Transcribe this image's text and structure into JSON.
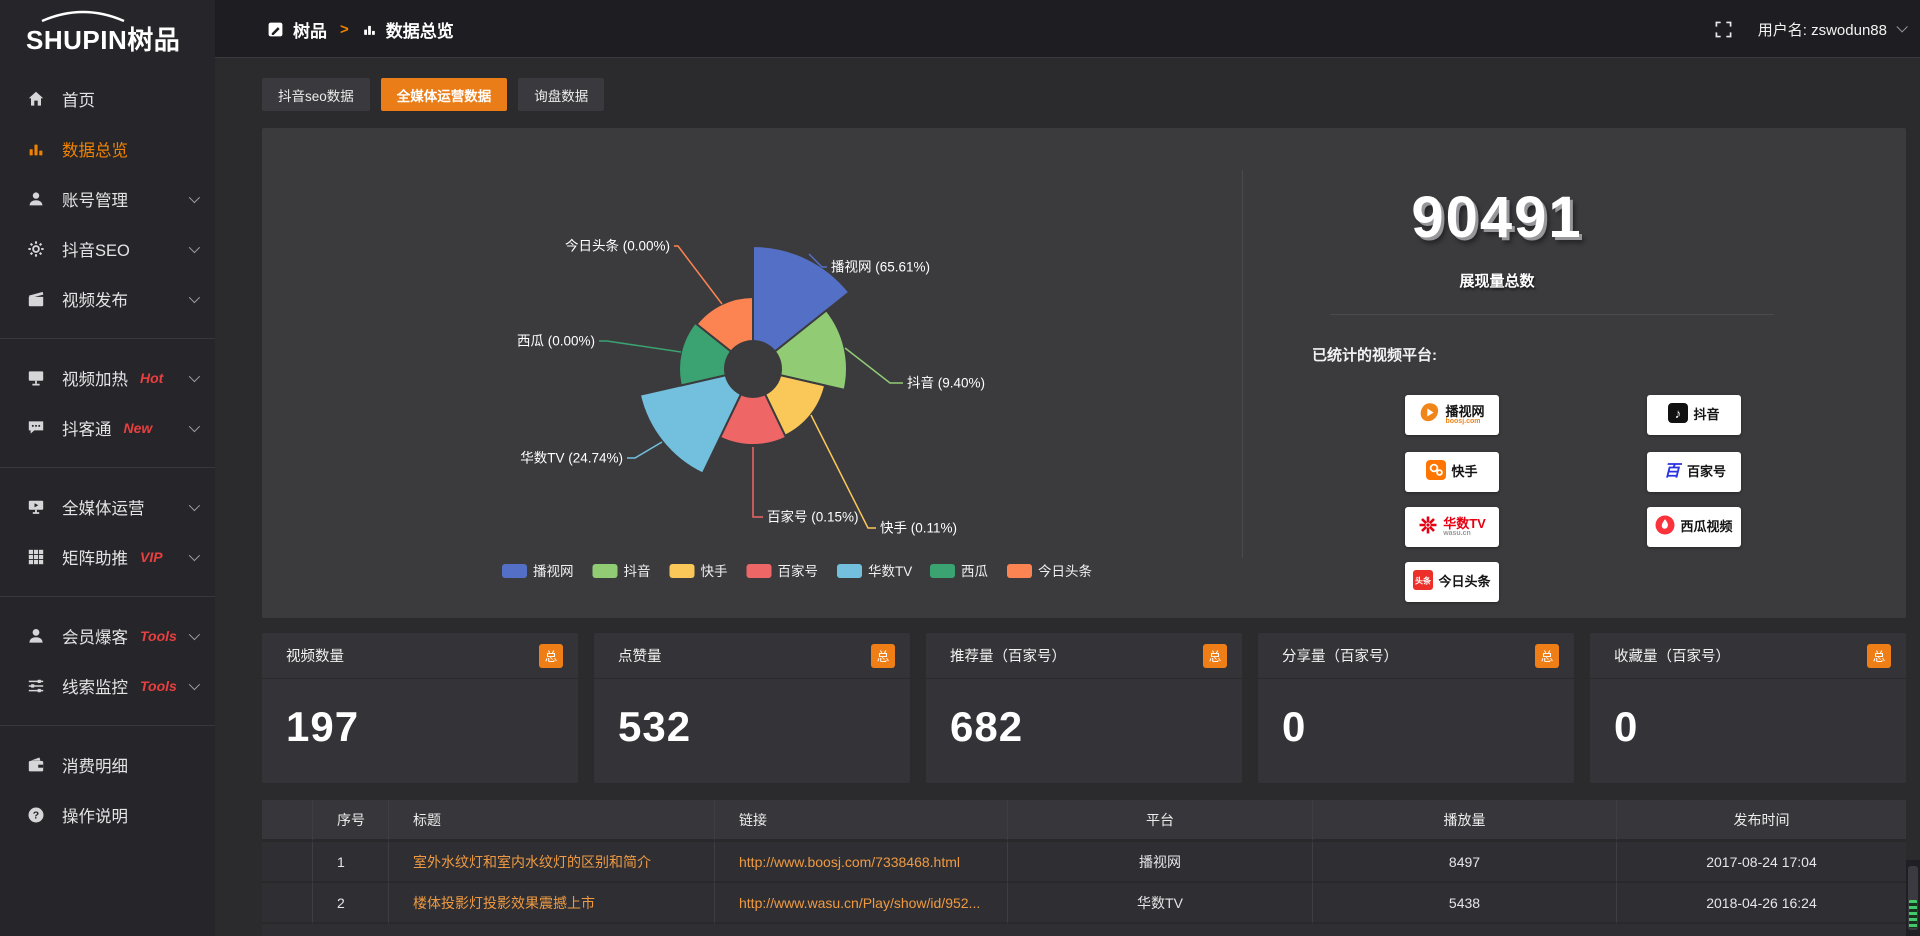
{
  "brand": {
    "text": "SHUPIN树品"
  },
  "topbar": {
    "breadcrumb": {
      "root": "树品",
      "separator": ">",
      "current": "数据总览"
    },
    "username": "用户名: zswodun88"
  },
  "sidebar": {
    "items": [
      {
        "id": "home",
        "label": "首页",
        "icon": "home-icon"
      },
      {
        "id": "data-overview",
        "label": "数据总览",
        "icon": "bar-chart-icon",
        "active": true
      },
      {
        "id": "account-manage",
        "label": "账号管理",
        "icon": "user-icon",
        "expandable": true
      },
      {
        "id": "douyin-seo",
        "label": "抖音SEO",
        "icon": "gear-icon",
        "expandable": true
      },
      {
        "id": "video-publish",
        "label": "视频发布",
        "icon": "clapper-icon",
        "expandable": true,
        "divider_after": true
      },
      {
        "id": "video-heat",
        "label": "视频加热",
        "badge": "Hot",
        "icon": "screen-icon",
        "expandable": true
      },
      {
        "id": "douketong",
        "label": "抖客通",
        "badge": "New",
        "icon": "chat-icon",
        "expandable": true,
        "divider_after": true
      },
      {
        "id": "omni-media",
        "label": "全媒体运营",
        "icon": "monitor-icon",
        "expandable": true
      },
      {
        "id": "matrix-boost",
        "label": "矩阵助推",
        "badge": "VIP",
        "icon": "grid-icon",
        "expandable": true,
        "divider_after": true
      },
      {
        "id": "member-burst",
        "label": "会员爆客",
        "badge": "Tools",
        "icon": "member-icon",
        "expandable": true
      },
      {
        "id": "clue-monitor",
        "label": "线索监控",
        "badge": "Tools",
        "icon": "sliders-icon",
        "expandable": true,
        "divider_after": true
      },
      {
        "id": "consume-detail",
        "label": "消费明细",
        "icon": "wallet-icon"
      },
      {
        "id": "operation-guide",
        "label": "操作说明",
        "icon": "help-icon"
      }
    ]
  },
  "tabs": [
    {
      "label": "抖音seo数据",
      "active": false
    },
    {
      "label": "全媒体运营数据",
      "active": true
    },
    {
      "label": "询盘数据",
      "active": false
    }
  ],
  "chart_data": {
    "type": "pie",
    "subtype": "nightingale-rose",
    "title": "",
    "series": [
      {
        "name": "播视网",
        "pct": 65.61,
        "color": "#5470c6"
      },
      {
        "name": "抖音",
        "pct": 9.4,
        "color": "#91cc75"
      },
      {
        "name": "快手",
        "pct": 0.11,
        "color": "#fac858"
      },
      {
        "name": "百家号",
        "pct": 0.15,
        "color": "#ee6666"
      },
      {
        "name": "华数TV",
        "pct": 24.74,
        "color": "#73c0de"
      },
      {
        "name": "西瓜",
        "pct": 0.0,
        "color": "#3ba272"
      },
      {
        "name": "今日头条",
        "pct": 0.0,
        "color": "#fc8452"
      }
    ],
    "label_format": "{name} ({pct}%)",
    "legend_position": "bottom",
    "legend": [
      "播视网",
      "抖音",
      "快手",
      "百家号",
      "华数TV",
      "西瓜",
      "今日头条"
    ]
  },
  "summary": {
    "total": "90491",
    "total_label": "展现量总数",
    "platforms_label": "已统计的视频平台:",
    "platforms": [
      {
        "name": "播视网",
        "sub": "boosj.com",
        "icon": "boosj-logo"
      },
      {
        "name": "抖音",
        "icon": "douyin-logo"
      },
      {
        "name": "快手",
        "icon": "kuaishou-logo"
      },
      {
        "name": "百家号",
        "icon": "baijiahao-logo"
      },
      {
        "name": "华数TV",
        "sub": "wasu.cn",
        "icon": "wasu-logo",
        "red": true
      },
      {
        "name": "西瓜视频",
        "icon": "xigua-logo"
      },
      {
        "name": "今日头条",
        "icon": "toutiao-logo"
      }
    ]
  },
  "stat_cards": [
    {
      "label": "视频数量",
      "badge": "总",
      "value": "197"
    },
    {
      "label": "点赞量",
      "badge": "总",
      "value": "532"
    },
    {
      "label": "推荐量（百家号）",
      "badge": "总",
      "value": "682"
    },
    {
      "label": "分享量（百家号）",
      "badge": "总",
      "value": "0"
    },
    {
      "label": "收藏量（百家号）",
      "badge": "总",
      "value": "0"
    }
  ],
  "table": {
    "headers": [
      "序号",
      "标题",
      "链接",
      "平台",
      "播放量",
      "发布时间"
    ],
    "rows": [
      {
        "num": "1",
        "title": "室外水纹灯和室内水纹灯的区别和简介",
        "link": "http://www.boosj.com/7338468.html",
        "platform": "播视网",
        "plays": "8497",
        "time": "2017-08-24 17:04"
      },
      {
        "num": "2",
        "title": "楼体投影灯投影效果震撼上市",
        "link": "http://www.wasu.cn/Play/show/id/952...",
        "platform": "华数TV",
        "plays": "5438",
        "time": "2018-04-26 16:24"
      }
    ]
  }
}
